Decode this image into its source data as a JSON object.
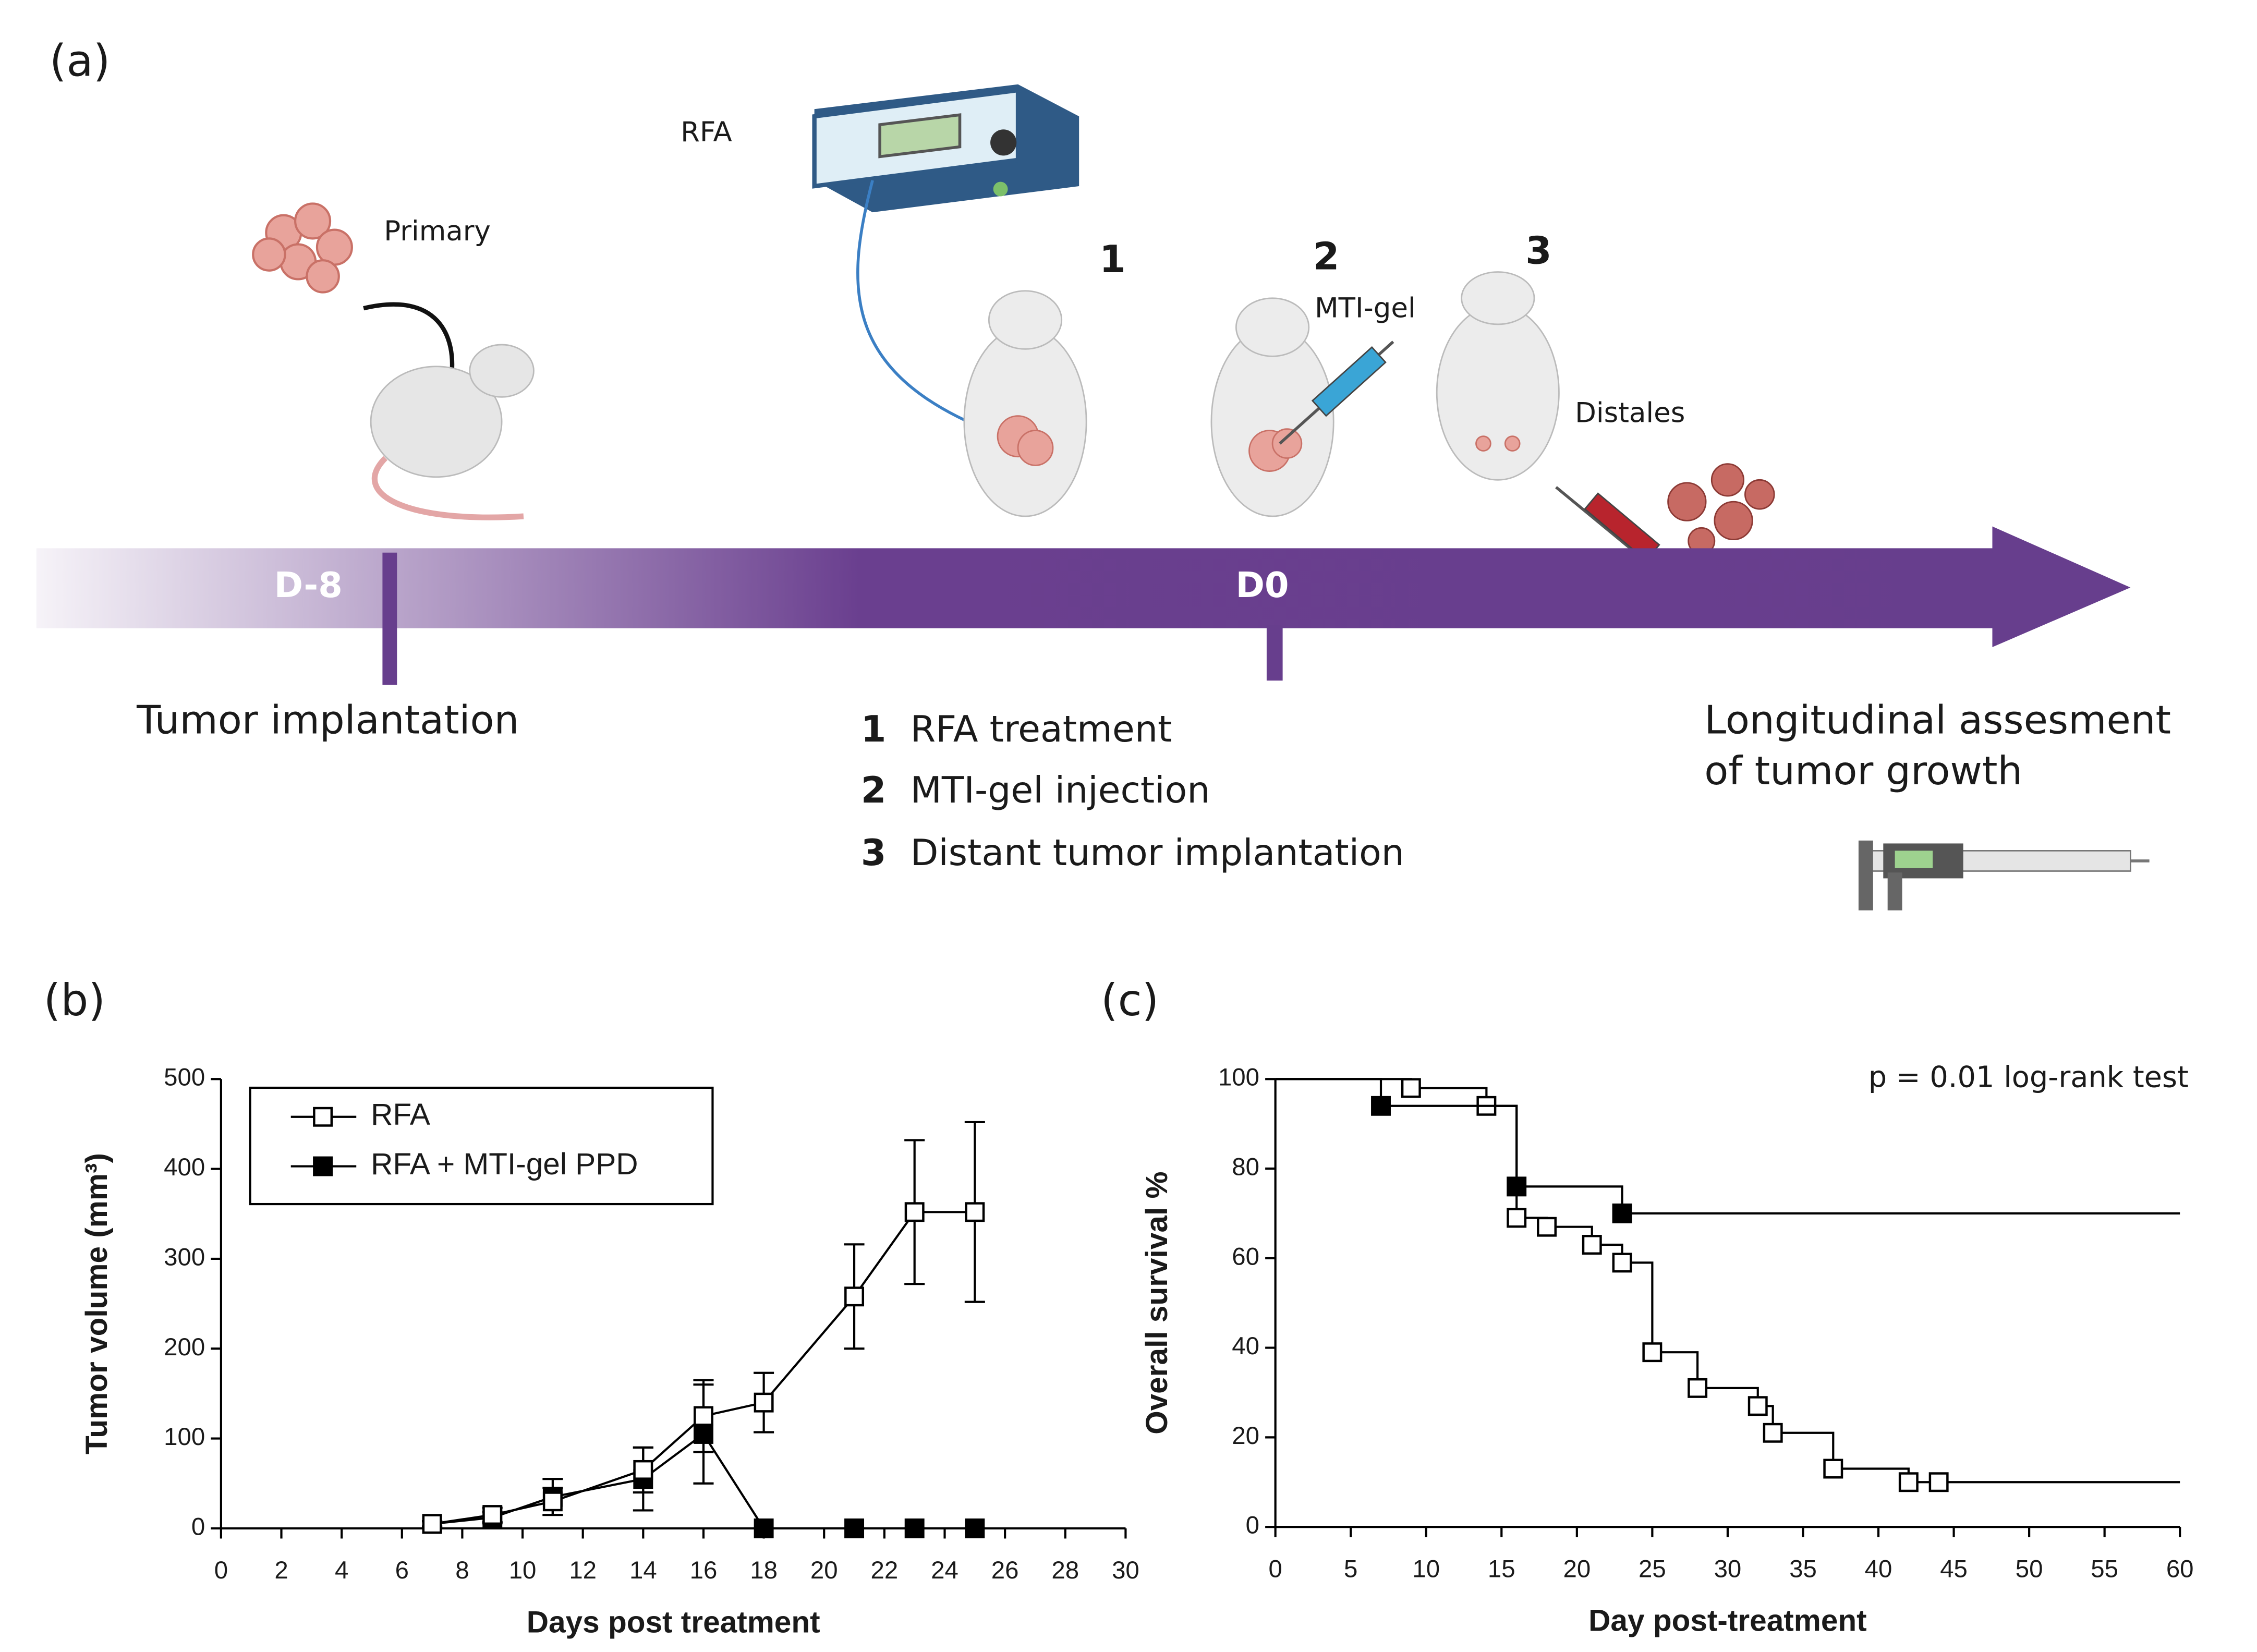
{
  "diagram": {
    "panel_label": "(a)",
    "rfa_device": "RFA",
    "primary": "Primary",
    "steps": [
      "1",
      "2",
      "3"
    ],
    "mti_gel": "MTI-gel",
    "distales": "Distales",
    "timepoints": [
      "D-8",
      "D0"
    ],
    "tumor_implantation": "Tumor implantation",
    "legend": [
      {
        "number": "1",
        "text": "RFA treatment"
      },
      {
        "number": "2",
        "text": "MTI-gel injection"
      },
      {
        "number": "3",
        "text": "Distant tumor implantation"
      }
    ],
    "assessment": [
      "Longitudinal assesment",
      "of tumor growth"
    ]
  },
  "chart_data": [
    {
      "type": "line",
      "panel_label": "(b)",
      "xlabel": "Days post treatment",
      "ylabel": "Tumor volume (mm³)",
      "xlim": [
        0,
        30
      ],
      "xticks": [
        0,
        2,
        4,
        6,
        8,
        10,
        12,
        14,
        16,
        18,
        20,
        22,
        24,
        26,
        28,
        30
      ],
      "ylim": [
        0,
        500
      ],
      "yticks": [
        0,
        100,
        200,
        300,
        400,
        500
      ],
      "legend": "upper left",
      "series": [
        {
          "name": "RFA",
          "color": "#000000",
          "marker": "open-square",
          "x": [
            7,
            9,
            11,
            14,
            16,
            18,
            21,
            23,
            25
          ],
          "values": [
            5,
            15,
            30,
            65,
            125,
            140,
            258,
            352,
            352
          ],
          "errors": [
            3,
            8,
            15,
            25,
            40,
            33,
            58,
            80,
            100
          ]
        },
        {
          "name": "RFA + MTI-gel PPD",
          "color": "#000000",
          "marker": "filled-square",
          "x": [
            7,
            9,
            11,
            14,
            16,
            18,
            21,
            23,
            25
          ],
          "values": [
            5,
            12,
            35,
            55,
            105,
            0,
            0,
            0,
            0
          ],
          "errors": [
            3,
            6,
            20,
            35,
            55,
            0,
            0,
            0,
            0
          ]
        }
      ]
    },
    {
      "type": "step",
      "panel_label": "(c)",
      "xlabel": "Day post-treatment",
      "ylabel": "Overall survival %",
      "annotation": "p = 0.01 log-rank test",
      "xlim": [
        0,
        60
      ],
      "xticks": [
        0,
        5,
        10,
        15,
        20,
        25,
        30,
        35,
        40,
        45,
        50,
        55,
        60
      ],
      "ylim": [
        0,
        100
      ],
      "yticks": [
        0,
        20,
        40,
        60,
        80,
        100
      ],
      "series": [
        {
          "color": "#000000",
          "marker": "open-square",
          "x": [
            0,
            9,
            14,
            16,
            18,
            21,
            23,
            25,
            28,
            32,
            33,
            37,
            42,
            44,
            60
          ],
          "values": [
            100,
            98,
            94,
            69,
            67,
            63,
            59,
            39,
            31,
            27,
            21,
            13,
            10,
            10,
            10
          ]
        },
        {
          "color": "#000000",
          "marker": "filled-square",
          "x": [
            0,
            7,
            16,
            23,
            60
          ],
          "values": [
            100,
            94,
            76,
            70,
            70
          ]
        }
      ]
    }
  ]
}
